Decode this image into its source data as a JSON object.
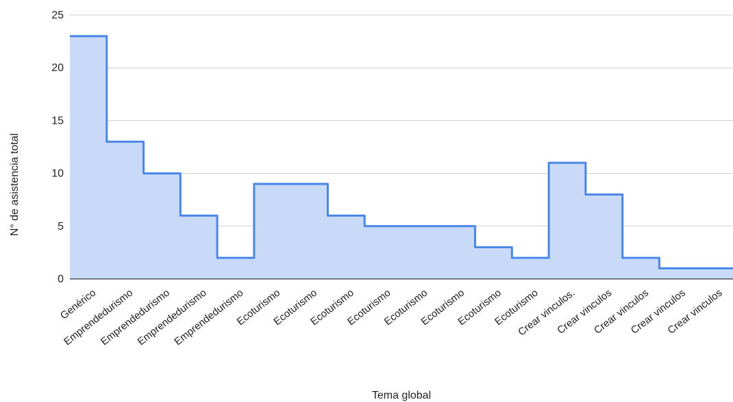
{
  "chart_data": {
    "type": "area",
    "step": true,
    "xlabel": "Tema global",
    "ylabel": "N° de asistencia total",
    "ylim": [
      0,
      25
    ],
    "yticks": [
      0,
      5,
      10,
      15,
      20,
      25
    ],
    "grid": true,
    "categories": [
      "Genérico",
      "Emprendedurismo",
      "Emprendedurismo",
      "Emprendedurismo",
      "Emprendedurismo",
      "Ecoturismo",
      "Ecoturismo",
      "Ecoturismo",
      "Ecoturismo",
      "Ecoturismo",
      "Ecoturismo",
      "Ecoturismo",
      "Ecoturismo",
      "Crear vinculos.",
      "Crear vinculos",
      "Crear vinculos",
      "Crear vinculos",
      "Crear vinculos"
    ],
    "values": [
      23,
      13,
      10,
      6,
      2,
      9,
      9,
      6,
      5,
      5,
      5,
      3,
      2,
      11,
      8,
      2,
      1,
      1
    ],
    "colors": {
      "line": "#4a86e8",
      "fill": "#c9daf8",
      "grid": "#cccccc",
      "baseline": "#333333"
    }
  }
}
